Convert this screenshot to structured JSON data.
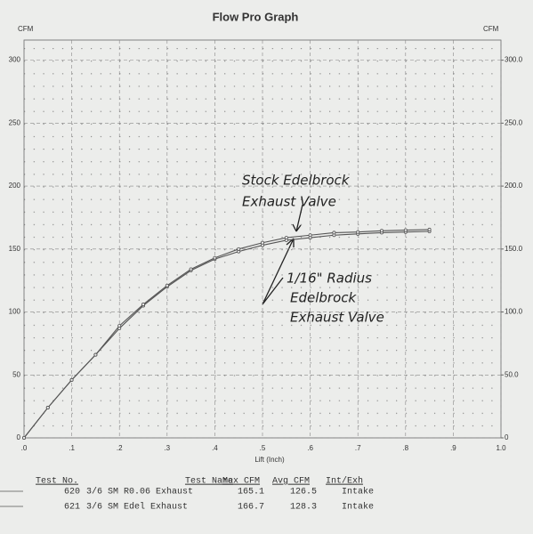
{
  "chart_data": {
    "type": "line",
    "title": "Flow Pro Graph",
    "ylabel": "CFM",
    "y2label": "CFM",
    "xlabel": "Lift (Inch)",
    "x": [
      0,
      0.05,
      0.1,
      0.15,
      0.2,
      0.25,
      0.3,
      0.35,
      0.4,
      0.45,
      0.5,
      0.55,
      0.6,
      0.65,
      0.7,
      0.75,
      0.8,
      0.85
    ],
    "xlim": [
      0,
      1
    ],
    "xticks": [
      {
        "value": 0,
        "label": ".0"
      },
      {
        "value": 0.1,
        "label": ".1"
      },
      {
        "value": 0.2,
        "label": ".2"
      },
      {
        "value": 0.3,
        "label": ".3"
      },
      {
        "value": 0.4,
        "label": ".4"
      },
      {
        "value": 0.5,
        "label": ".5"
      },
      {
        "value": 0.6,
        "label": ".6"
      },
      {
        "value": 0.7,
        "label": ".7"
      },
      {
        "value": 0.8,
        "label": ".8"
      },
      {
        "value": 0.9,
        "label": ".9"
      },
      {
        "value": 1,
        "label": "1.0"
      }
    ],
    "ylim": [
      0,
      316
    ],
    "yticks": [
      0,
      50,
      100,
      150,
      200,
      250,
      300
    ],
    "y2lim": [
      0,
      316
    ],
    "y2ticks": [
      0,
      {
        "value": 50,
        "label": "50.0"
      },
      {
        "value": 100,
        "label": "100.0"
      },
      {
        "value": 150,
        "label": "150.0"
      },
      {
        "value": 200,
        "label": "200.0"
      },
      {
        "value": 250,
        "label": "250.0"
      },
      {
        "value": 300,
        "label": "300.0"
      }
    ],
    "grid": true,
    "series": [
      {
        "name": "3/6 SM R0.06 Exhaust",
        "color": "#555555",
        "test_no": 620,
        "max_cfm": 165.1,
        "avg_cfm": 126.5,
        "int_exh": "Intake",
        "values": [
          0,
          24,
          46,
          66,
          87,
          105,
          120,
          133,
          142,
          148,
          153,
          157,
          159,
          161,
          162,
          163,
          163.5,
          164
        ]
      },
      {
        "name": "3/6 SM Edel Exhaust",
        "color": "#555555",
        "test_no": 621,
        "max_cfm": 166.7,
        "avg_cfm": 128.3,
        "int_exh": "Intake",
        "values": [
          0,
          24,
          46,
          66,
          89,
          106,
          121,
          134,
          143,
          150,
          155,
          159,
          161,
          163,
          163.5,
          164.5,
          165,
          165.5
        ]
      }
    ],
    "table_headers": [
      "Test No.",
      "Test Name",
      "Max CFM",
      "Avg CFM",
      "Int/Exh"
    ],
    "annotations": [
      {
        "lines": [
          "Stock Edelbrock",
          "Exhaust Valve"
        ]
      },
      {
        "lines": [
          "1/16\" Radius",
          "Edelbrock",
          "Exhaust Valve"
        ]
      }
    ]
  }
}
